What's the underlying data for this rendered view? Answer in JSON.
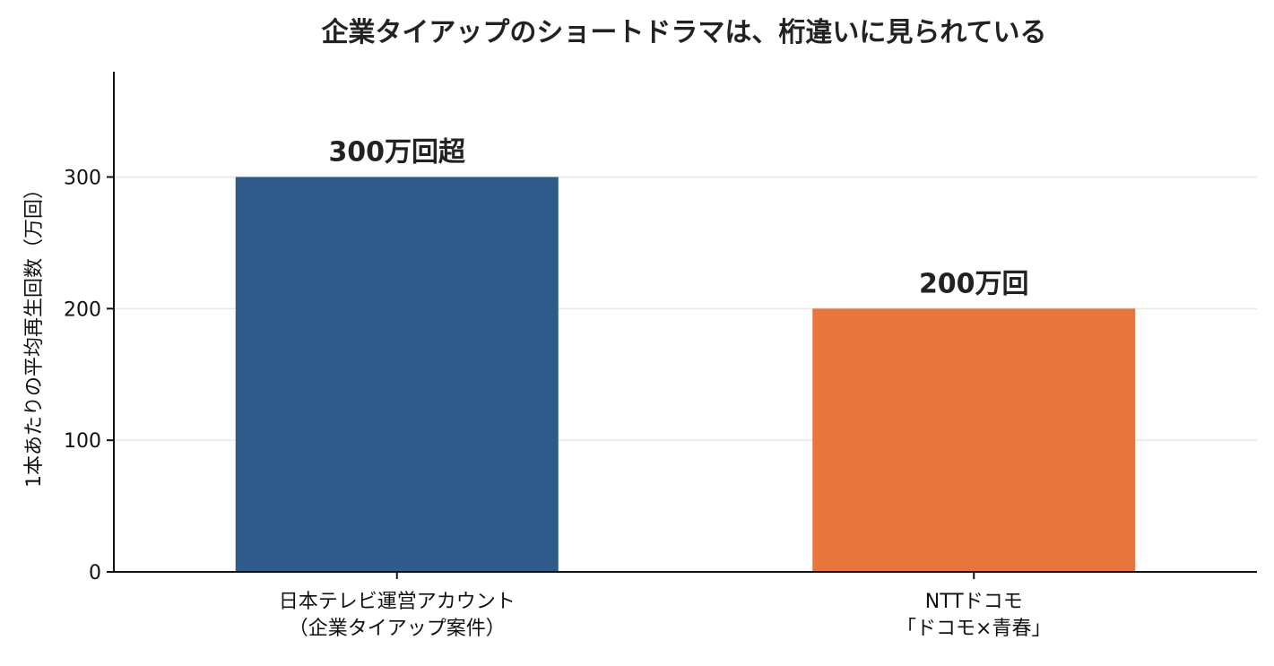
{
  "chart_data": {
    "type": "bar",
    "title": "企業タイアップのショートドラマは、桁違いに見られている",
    "xlabel": "",
    "ylabel": "1本あたりの平均再生回数（万回）",
    "ylim": [
      0,
      380
    ],
    "yticks": [
      0,
      100,
      200,
      300
    ],
    "grid": "horizontal",
    "categories": [
      [
        "日本テレビ運営アカウント",
        "（企業タイアップ案件）"
      ],
      [
        "NTTドコモ",
        "「ドコモ×青春」"
      ]
    ],
    "values": [
      300,
      200
    ],
    "data_labels": [
      "300万回超",
      "200万回"
    ],
    "colors": [
      "#2e5b8a",
      "#e8753e"
    ],
    "gridline_color": "#e6e6e6",
    "axis_color": "#111111"
  }
}
